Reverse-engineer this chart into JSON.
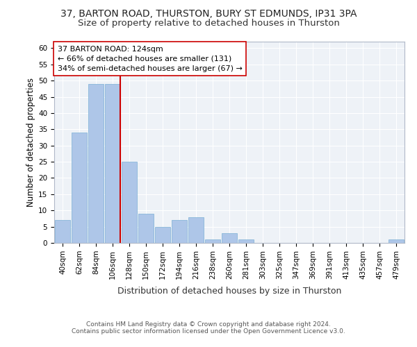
{
  "title": "37, BARTON ROAD, THURSTON, BURY ST EDMUNDS, IP31 3PA",
  "subtitle": "Size of property relative to detached houses in Thurston",
  "xlabel": "Distribution of detached houses by size in Thurston",
  "ylabel": "Number of detached properties",
  "bar_values": [
    7,
    34,
    49,
    49,
    25,
    9,
    5,
    7,
    8,
    1,
    3,
    1,
    0,
    0,
    0,
    0,
    0,
    0,
    0,
    0,
    1
  ],
  "bin_labels": [
    "40sqm",
    "62sqm",
    "84sqm",
    "106sqm",
    "128sqm",
    "150sqm",
    "172sqm",
    "194sqm",
    "216sqm",
    "238sqm",
    "260sqm",
    "281sqm",
    "303sqm",
    "325sqm",
    "347sqm",
    "369sqm",
    "391sqm",
    "413sqm",
    "435sqm",
    "457sqm",
    "479sqm"
  ],
  "bar_color": "#aec6e8",
  "bar_edge_color": "#7aafd4",
  "highlight_line_bin": 3,
  "highlight_line_color": "#cc0000",
  "annotation_line1": "37 BARTON ROAD: 124sqm",
  "annotation_line2": "← 66% of detached houses are smaller (131)",
  "annotation_line3": "34% of semi-detached houses are larger (67) →",
  "annotation_box_color": "#ffffff",
  "annotation_box_edge": "#cc0000",
  "ylim": [
    0,
    62
  ],
  "yticks": [
    0,
    5,
    10,
    15,
    20,
    25,
    30,
    35,
    40,
    45,
    50,
    55,
    60
  ],
  "footer_text": "Contains HM Land Registry data © Crown copyright and database right 2024.\nContains public sector information licensed under the Open Government Licence v3.0.",
  "bg_color": "#eef2f7",
  "fig_bg_color": "#ffffff",
  "grid_color": "#ffffff",
  "title_fontsize": 10,
  "subtitle_fontsize": 9.5,
  "xlabel_fontsize": 9,
  "ylabel_fontsize": 8.5,
  "tick_fontsize": 7.5,
  "annotation_fontsize": 8,
  "footer_fontsize": 6.5
}
